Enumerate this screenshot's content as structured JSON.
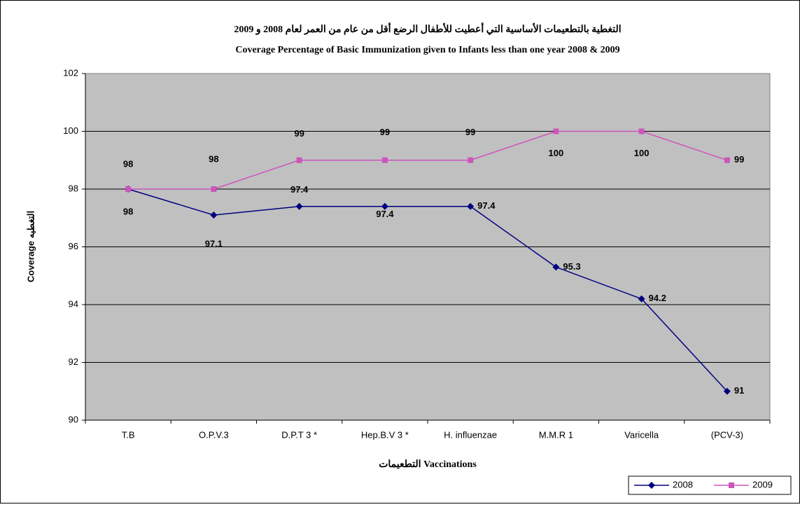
{
  "chart_data": {
    "type": "line",
    "title": "التغطية بالتطعيمات الأساسية التي أعطيت للأطفال الرضع أقل من عام من العمر لعام 2008 و 2009",
    "subtitle": "Coverage Percentage of Basic Immunization given to Infants less than one year 2008 & 2009",
    "x_label": "التطعيمات Vaccinations",
    "y_label": "Coverage التغطيه",
    "categories": [
      "T.B",
      "O.P.V.3",
      "D.P.T 3 *",
      "Hep.B.V 3 *",
      "H. influenzae",
      "M.M.R 1",
      "Varicella",
      "(PCV-3)"
    ],
    "series": [
      {
        "name": "2008",
        "color": "#000080",
        "marker": "diamond",
        "values": [
          98,
          97.1,
          97.4,
          97.4,
          97.4,
          95.3,
          94.2,
          91
        ]
      },
      {
        "name": "2009",
        "color": "#cc55bb",
        "marker": "square",
        "values": [
          98,
          98,
          99,
          99,
          99,
          100,
          100,
          99
        ]
      }
    ],
    "ylim": [
      90,
      102
    ],
    "yticks": [
      90,
      92,
      94,
      96,
      98,
      100,
      102
    ],
    "grid": true,
    "legend": "bottom-right"
  }
}
